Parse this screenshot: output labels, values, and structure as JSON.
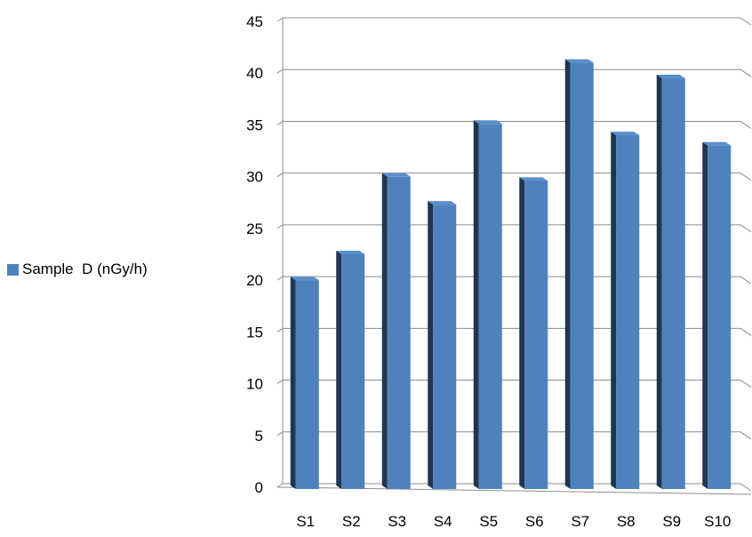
{
  "chart_data": {
    "type": "bar",
    "style": "3d-column",
    "categories": [
      "S1",
      "S2",
      "S3",
      "S4",
      "S5",
      "S6",
      "S7",
      "S8",
      "S9",
      "S10"
    ],
    "series": [
      {
        "name": "Sample  D (nGy/h)",
        "values": [
          20,
          22.5,
          30,
          27.3,
          35.1,
          29.6,
          41,
          34,
          39.5,
          33
        ]
      }
    ],
    "title": "",
    "xlabel": "",
    "ylabel": "",
    "ylim": [
      0,
      45
    ],
    "yticks": [
      0,
      5,
      10,
      15,
      20,
      25,
      30,
      35,
      40,
      45
    ],
    "grid": true,
    "legend_position": "left",
    "colors": {
      "bar_front": "#4f81bd",
      "bar_side": "#1f3550",
      "bar_top": "#5b8fcc",
      "gridline": "#8c8c8c"
    }
  }
}
